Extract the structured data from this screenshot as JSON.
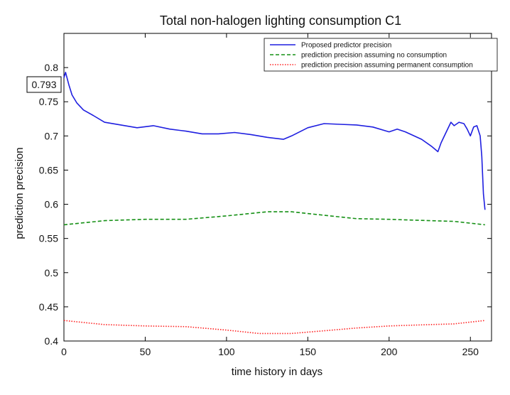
{
  "chart_data": {
    "type": "line",
    "title": "Total non-halogen lighting consumption C1",
    "xlabel": "time history in days",
    "ylabel": "prediction precision",
    "xlim": [
      0,
      263
    ],
    "ylim": [
      0.4,
      0.85
    ],
    "xticks": [
      0,
      50,
      100,
      150,
      200,
      250
    ],
    "yticks": [
      0.4,
      0.45,
      0.5,
      0.55,
      0.6,
      0.65,
      0.7,
      0.75,
      0.8
    ],
    "grid": false,
    "legend_position": "top-right",
    "callout": "0.793",
    "series": [
      {
        "name": "Proposed predictor precision",
        "color": "#1f1fe0",
        "style": "solid",
        "x": [
          0,
          1,
          3,
          5,
          8,
          12,
          18,
          25,
          35,
          45,
          55,
          65,
          75,
          85,
          95,
          105,
          115,
          125,
          135,
          140,
          150,
          160,
          170,
          180,
          190,
          200,
          205,
          210,
          220,
          226,
          230,
          232,
          235,
          238,
          240,
          243,
          246,
          248,
          250,
          252,
          254,
          256,
          257,
          258,
          259
        ],
        "y": [
          0.785,
          0.793,
          0.775,
          0.76,
          0.748,
          0.738,
          0.73,
          0.72,
          0.716,
          0.712,
          0.715,
          0.71,
          0.707,
          0.703,
          0.703,
          0.705,
          0.702,
          0.698,
          0.695,
          0.7,
          0.712,
          0.718,
          0.717,
          0.716,
          0.713,
          0.706,
          0.71,
          0.706,
          0.695,
          0.685,
          0.677,
          0.69,
          0.705,
          0.72,
          0.715,
          0.72,
          0.718,
          0.71,
          0.7,
          0.713,
          0.715,
          0.7,
          0.67,
          0.615,
          0.592
        ]
      },
      {
        "name": "prediction precision assuming no consumption",
        "color": "#159015",
        "style": "dashed",
        "x": [
          0,
          25,
          50,
          75,
          100,
          125,
          140,
          160,
          180,
          200,
          225,
          240,
          259
        ],
        "y": [
          0.57,
          0.576,
          0.578,
          0.578,
          0.583,
          0.589,
          0.589,
          0.584,
          0.579,
          0.578,
          0.576,
          0.575,
          0.57
        ]
      },
      {
        "name": "prediction precision assuming permanent consumption",
        "color": "#ff2020",
        "style": "dotted",
        "x": [
          0,
          25,
          50,
          75,
          100,
          120,
          140,
          160,
          180,
          200,
          225,
          240,
          259
        ],
        "y": [
          0.43,
          0.424,
          0.422,
          0.421,
          0.416,
          0.411,
          0.411,
          0.415,
          0.419,
          0.422,
          0.424,
          0.425,
          0.43
        ]
      }
    ]
  }
}
